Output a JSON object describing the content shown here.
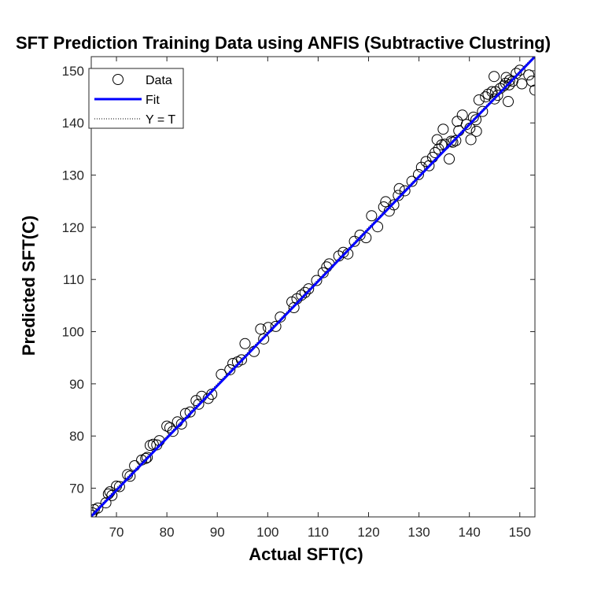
{
  "figure": {
    "background_color": "#ffffff"
  },
  "chart_data": {
    "type": "scatter",
    "title": "SFT Prediction Training Data using ANFIS (Subtractive Clustring)",
    "xlabel": "Actual SFT(C)",
    "ylabel": "Predicted SFT(C)",
    "xlim": [
      65,
      153
    ],
    "ylim": [
      64.5,
      152.7
    ],
    "xticks": [
      70,
      80,
      90,
      100,
      110,
      120,
      130,
      140,
      150
    ],
    "yticks": [
      70,
      80,
      90,
      100,
      110,
      120,
      130,
      140,
      150
    ],
    "grid": false,
    "legend_placement": "top-left",
    "legend": [
      {
        "label": "Data",
        "marker": "circle",
        "color": "#000000"
      },
      {
        "label": "Fit",
        "line": "solid",
        "color": "#0000ff"
      },
      {
        "label": "Y = T",
        "line": "dotted",
        "color": "#000000"
      }
    ],
    "series": [
      {
        "name": "Data",
        "marker": "circle",
        "color": "#000000",
        "x": [
          65.0,
          65.2,
          65.6,
          66.3,
          67.9,
          68.4,
          68.7,
          69.1,
          70.0,
          70.6,
          72.2,
          72.7,
          73.6,
          75.0,
          75.8,
          76.1,
          76.7,
          77.3,
          78.0,
          78.5,
          80.0,
          80.6,
          81.2,
          82.1,
          82.9,
          83.7,
          84.6,
          85.8,
          86.3,
          86.9,
          88.2,
          88.9,
          90.8,
          92.5,
          93.1,
          94.0,
          94.8,
          95.5,
          97.3,
          98.6,
          99.2,
          100.1,
          101.6,
          102.5,
          104.8,
          105.2,
          105.8,
          106.7,
          107.4,
          108.1,
          109.7,
          111.0,
          111.7,
          112.2,
          114.1,
          115.0,
          115.9,
          117.2,
          118.3,
          119.5,
          120.6,
          121.8,
          123.0,
          123.4,
          124.1,
          125.0,
          125.9,
          127.2,
          128.6,
          129.9,
          130.5,
          131.4,
          132.0,
          132.7,
          133.2,
          133.9,
          134.5,
          135.1,
          136.0,
          136.7,
          137.3,
          137.9,
          138.6,
          139.4,
          140.1,
          140.8,
          141.4,
          141.9,
          142.6,
          143.2,
          143.7,
          144.5,
          145.0,
          145.6,
          146.1,
          146.8,
          147.2,
          147.7,
          148.0,
          148.6,
          149.3,
          150.0,
          151.8,
          152.4,
          153.0,
          134.8,
          136.4,
          137.6,
          140.3,
          144.9,
          147.3,
          147.9,
          150.4,
          126.1,
          133.6,
          141.3,
          145.2
        ],
        "y": [
          64.8,
          65.3,
          65.9,
          66.2,
          67.2,
          68.9,
          69.3,
          68.6,
          70.4,
          70.3,
          72.6,
          72.3,
          74.3,
          75.4,
          75.7,
          75.9,
          78.2,
          78.4,
          78.3,
          79.1,
          81.9,
          81.6,
          80.9,
          82.7,
          82.3,
          84.3,
          84.6,
          86.8,
          86.1,
          87.6,
          87.2,
          88.0,
          91.8,
          92.7,
          93.9,
          94.2,
          94.6,
          97.7,
          96.2,
          100.5,
          98.6,
          100.8,
          101.0,
          102.8,
          105.7,
          104.6,
          106.3,
          107.0,
          107.5,
          108.2,
          109.8,
          111.3,
          112.4,
          113.0,
          114.5,
          115.2,
          114.9,
          117.3,
          118.5,
          118.0,
          122.2,
          120.1,
          123.9,
          124.9,
          123.1,
          124.3,
          126.1,
          127.0,
          128.8,
          130.1,
          131.5,
          132.6,
          131.8,
          133.4,
          134.3,
          135.0,
          135.8,
          135.9,
          133.1,
          136.3,
          136.6,
          138.5,
          141.5,
          139.7,
          139.0,
          141.1,
          138.4,
          144.4,
          142.2,
          145.0,
          145.5,
          146.0,
          144.6,
          145.3,
          146.6,
          147.1,
          147.6,
          144.1,
          148.2,
          148.0,
          149.5,
          150.1,
          149.2,
          148.0,
          146.3,
          138.8,
          136.5,
          140.3,
          136.8,
          148.9,
          148.7,
          147.3,
          147.5,
          127.4,
          136.8,
          140.6,
          146.0
        ]
      },
      {
        "name": "Fit",
        "line": "solid",
        "color": "#0000ff",
        "x": [
          65,
          153
        ],
        "y": [
          64.6,
          152.7
        ]
      },
      {
        "name": "Y = T",
        "line": "dotted",
        "color": "#000000",
        "x": [
          65,
          153
        ],
        "y": [
          65,
          153
        ]
      }
    ]
  }
}
